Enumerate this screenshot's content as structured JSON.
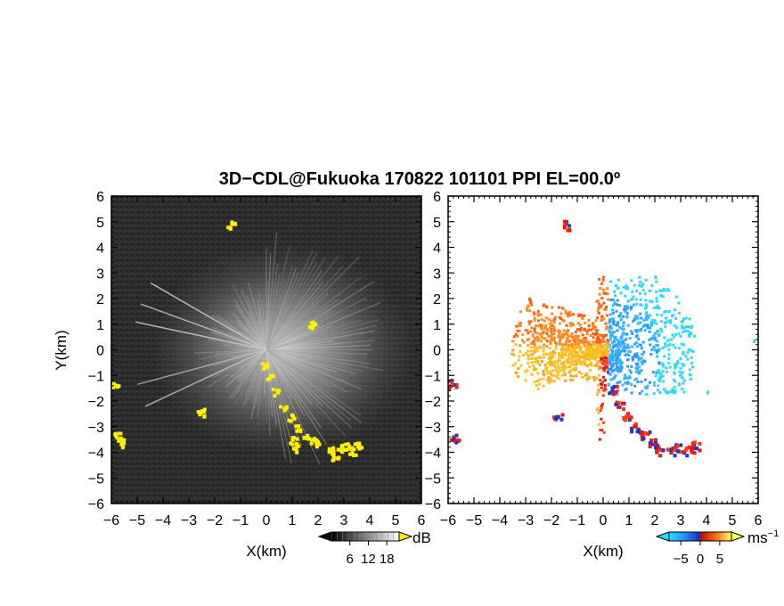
{
  "title": "3D−CDL@Fukuoka 170822 101101 PPI EL=00.0º",
  "chart_data": [
    {
      "type": "heatmap",
      "name": "reflectivity",
      "xlabel": "X(km)",
      "ylabel": "Y(km)",
      "xlim": [
        -6,
        6
      ],
      "ylim": [
        -6,
        6
      ],
      "x_ticks": [
        "−6",
        "−5",
        "−4",
        "−3",
        "−2",
        "−1",
        "0",
        "1",
        "2",
        "3",
        "4",
        "5",
        "6"
      ],
      "y_ticks": [
        "−6",
        "−5",
        "−4",
        "−3",
        "−2",
        "−1",
        "0",
        "1",
        "2",
        "3",
        "4",
        "5",
        "6"
      ],
      "colorbar": {
        "unit": "dB",
        "tick_labels": [
          "6",
          "12",
          "18"
        ],
        "tick_values": [
          6,
          12,
          18
        ],
        "range": [
          0,
          22
        ]
      },
      "highlight_color": "#ffee00"
    },
    {
      "type": "heatmap",
      "name": "doppler_velocity",
      "xlabel": "X(km)",
      "xlim": [
        -6,
        6
      ],
      "ylim": [
        -6,
        6
      ],
      "x_ticks": [
        "−6",
        "−5",
        "−4",
        "−3",
        "−2",
        "−1",
        "0",
        "1",
        "2",
        "3",
        "4",
        "5",
        "6"
      ],
      "y_ticks": [
        "−6",
        "−5",
        "−4",
        "−3",
        "−2",
        "−1",
        "0",
        "1",
        "2",
        "3",
        "4",
        "5",
        "6"
      ],
      "colorbar": {
        "unit": "ms",
        "unit_exponent": "−1",
        "tick_labels": [
          "−5",
          "0",
          "5"
        ],
        "tick_values": [
          -5,
          0,
          5
        ],
        "range": [
          -8,
          8
        ]
      },
      "colors": {
        "negative": "#2a8cff",
        "positive": "#ff5a14"
      }
    }
  ]
}
